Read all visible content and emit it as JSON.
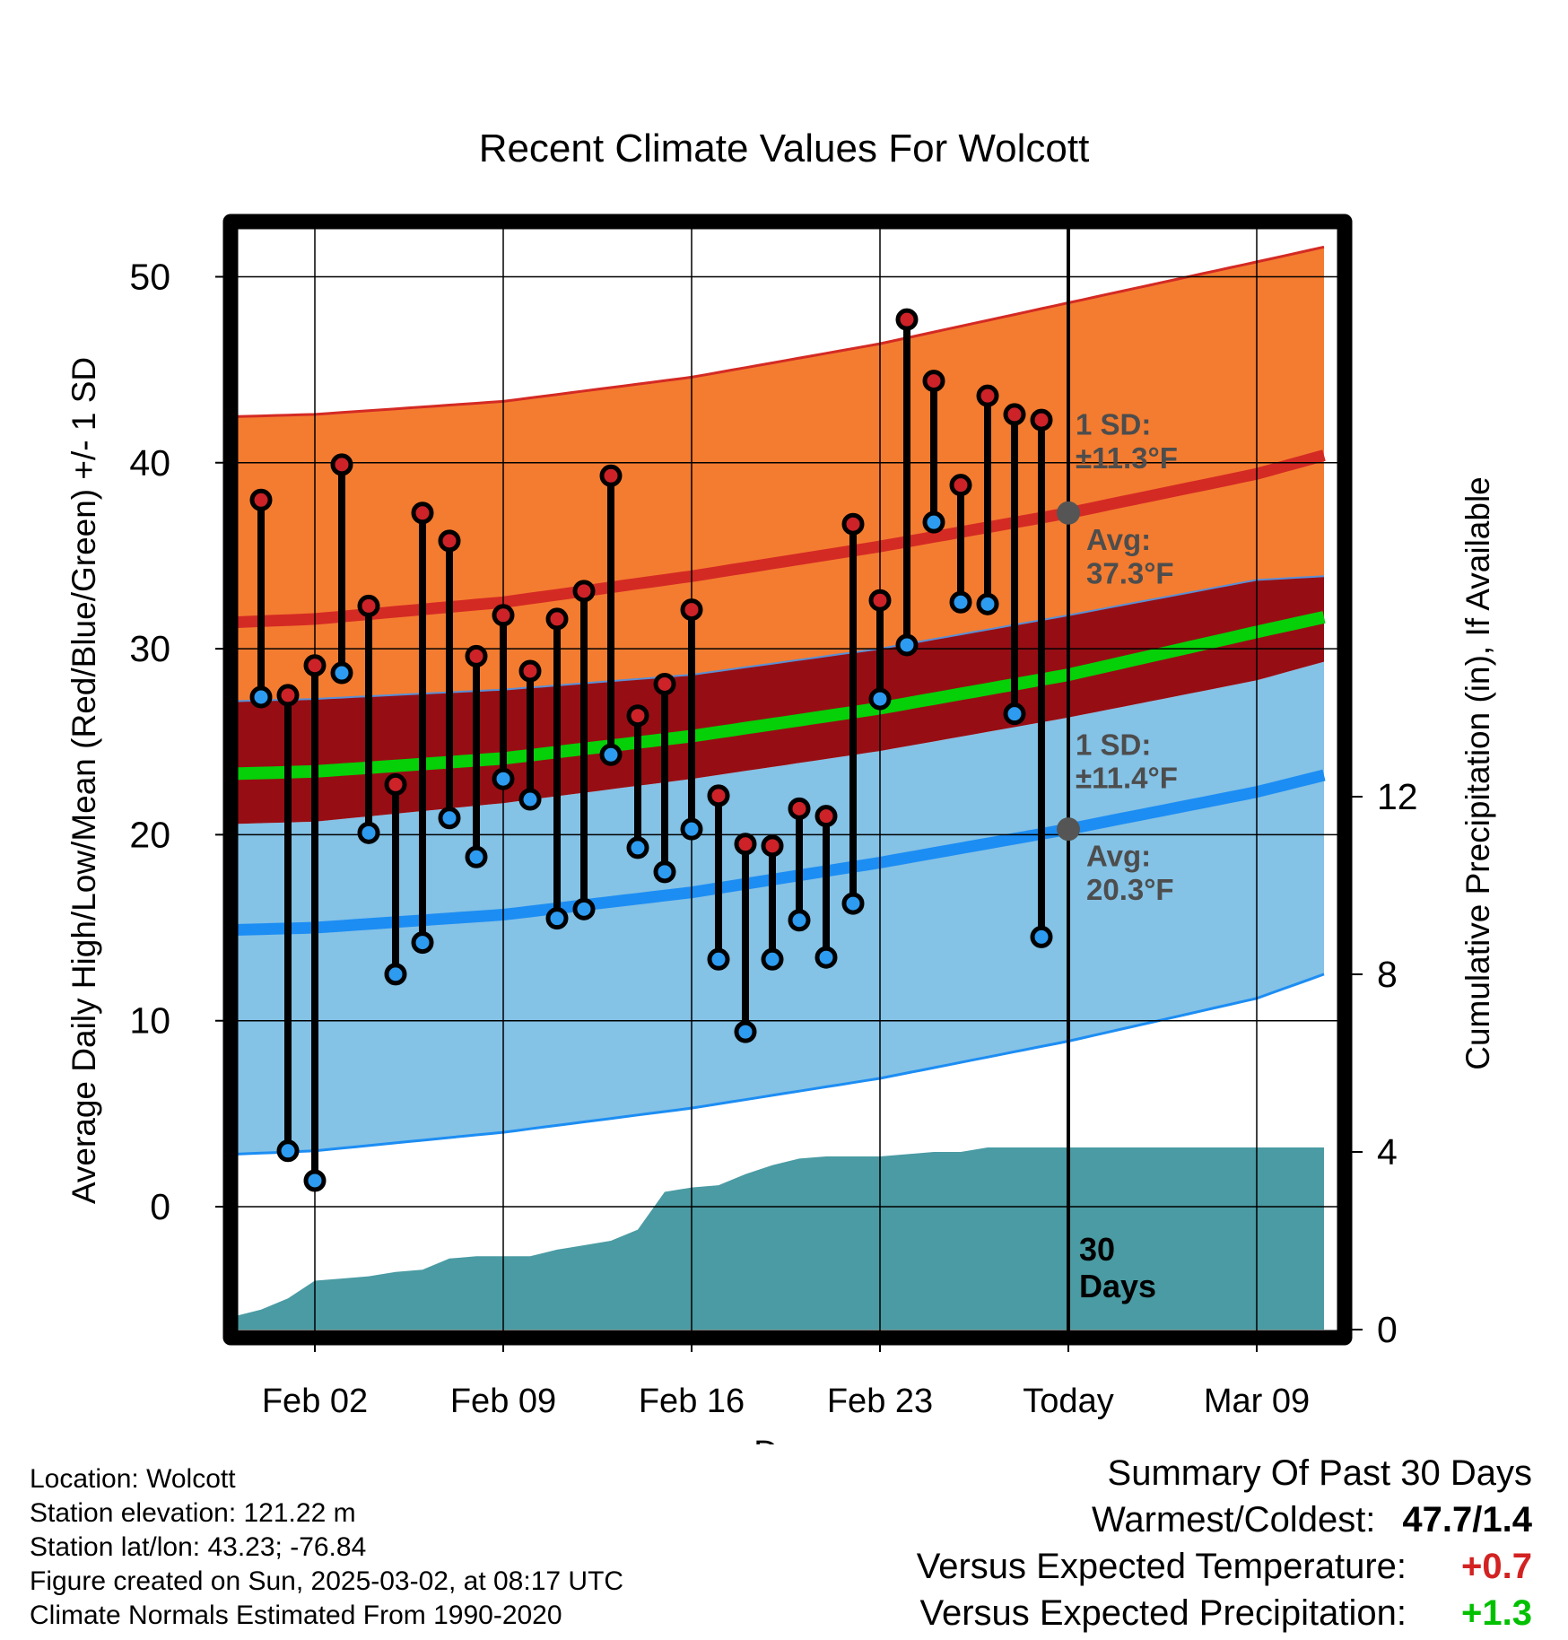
{
  "chart_data": {
    "type": "line",
    "title": "Recent Climate Values For Wolcott",
    "xlabel": "Day",
    "ylabel_left": "Average Daily High/Low/Mean (Red/Blue/Green) +/- 1 SD",
    "ylabel_right": "Cumulative Precipitation (in), If Available",
    "x_range_days": [
      -33.5,
      11.5
    ],
    "ylim_left": [
      -6.5,
      53.5
    ],
    "ylim_right": [
      0,
      20
    ],
    "x_ticks": [
      {
        "day": -28,
        "label": "Feb 02"
      },
      {
        "day": -21,
        "label": "Feb 09"
      },
      {
        "day": -14,
        "label": "Feb 16"
      },
      {
        "day": -7,
        "label": "Feb 23"
      },
      {
        "day": 0,
        "label": "Today"
      },
      {
        "day": 7,
        "label": "Mar 09"
      }
    ],
    "y_ticks_left": [
      0,
      10,
      20,
      30,
      40,
      50
    ],
    "y_ticks_right": [
      0,
      4,
      8,
      12
    ],
    "grid": true,
    "normals_days": [
      -33,
      -28,
      -21,
      -14,
      -7,
      0,
      7,
      9.5
    ],
    "normal_high": [
      31.3,
      31.6,
      32.5,
      33.9,
      35.5,
      37.3,
      39.4,
      40.4
    ],
    "normal_high_upper": [
      42.4,
      42.6,
      43.3,
      44.6,
      46.4,
      48.6,
      50.8,
      51.6
    ],
    "normal_high_lower": [
      27.1,
      27.3,
      27.8,
      28.6,
      30.0,
      31.8,
      33.7,
      33.9
    ],
    "normal_mean": [
      23.2,
      23.4,
      24.1,
      25.3,
      26.8,
      28.6,
      30.9,
      31.7
    ],
    "normal_low": [
      14.8,
      15.0,
      15.7,
      16.9,
      18.5,
      20.3,
      22.3,
      23.2
    ],
    "normal_low_upper": [
      20.5,
      20.7,
      21.7,
      23.0,
      24.5,
      26.3,
      28.3,
      29.3
    ],
    "normal_low_lower": [
      2.7,
      3.0,
      4.0,
      5.3,
      6.9,
      8.9,
      11.2,
      12.5
    ],
    "observed": {
      "days": [
        -30,
        -29,
        -28,
        -27,
        -26,
        -25,
        -24,
        -23,
        -22,
        -21,
        -20,
        -19,
        -18,
        -17,
        -16,
        -15,
        -14,
        -13,
        -12,
        -11,
        -10,
        -9,
        -8,
        -7,
        -6,
        -5,
        -4,
        -3,
        -2,
        -1
      ],
      "highs": [
        38.0,
        27.5,
        29.1,
        39.9,
        32.3,
        22.7,
        37.3,
        35.8,
        29.6,
        31.8,
        28.8,
        31.6,
        33.1,
        39.3,
        26.4,
        28.1,
        32.1,
        22.1,
        19.5,
        19.4,
        21.4,
        21.0,
        36.7,
        32.6,
        47.7,
        44.4,
        38.8,
        43.6,
        42.6,
        42.3
      ],
      "lows": [
        27.4,
        3.0,
        1.4,
        28.7,
        20.1,
        12.5,
        14.2,
        20.9,
        18.8,
        23.0,
        21.9,
        15.5,
        16.0,
        24.3,
        19.3,
        18.0,
        20.3,
        13.3,
        9.4,
        13.3,
        15.4,
        13.4,
        16.3,
        27.3,
        30.2,
        36.8,
        32.5,
        32.4,
        26.5,
        14.5
      ]
    },
    "precip_cumulative": {
      "days": [
        -33,
        -32.3,
        -31,
        -30,
        -29,
        -28,
        -27,
        -26,
        -25,
        -24,
        -23,
        -22,
        -21,
        -20,
        -19,
        -18,
        -17,
        -16,
        -15,
        -14,
        -13,
        -12,
        -11,
        -10,
        -9,
        -8,
        -7,
        -6,
        -5,
        -4,
        -3,
        -2,
        -1,
        9.5
      ],
      "values": [
        0,
        0.25,
        0.3,
        0.45,
        0.7,
        1.1,
        1.15,
        1.2,
        1.3,
        1.35,
        1.6,
        1.65,
        1.65,
        1.65,
        1.8,
        1.9,
        2.0,
        2.25,
        3.1,
        3.2,
        3.25,
        3.5,
        3.7,
        3.85,
        3.9,
        3.9,
        3.9,
        3.95,
        4.0,
        4.0,
        4.1,
        4.1,
        4.1,
        4.1
      ]
    },
    "annotations": {
      "sd_high": "1 SD:\n±11.3°F",
      "avg_high": "Avg:\n37.3°F",
      "sd_low": "1 SD:\n±11.4°F",
      "avg_low": "Avg:\n20.3°F",
      "window": "30\nDays"
    },
    "avg_high_value": 37.3,
    "avg_low_value": 20.3
  },
  "colors": {
    "high_band": "#f47c30",
    "high_line": "#d42a24",
    "overlap_band": "#960e14",
    "mean_line": "#06d008",
    "low_band": "#84c2e6",
    "low_line": "#1c8df3",
    "precip": "#4a9ba3",
    "high_marker": "#cd2228",
    "low_marker": "#2d9bf0",
    "annotation_text": "#4d4d4d",
    "warm_text": "#d22222",
    "green_text": "#00c000"
  },
  "info": {
    "location": "Location: Wolcott",
    "elevation": "Station elevation: 121.22 m",
    "latlon": "Station lat/lon: 43.23; -76.84",
    "created": "Figure created on Sun, 2025-03-02, at 08:17 UTC",
    "normals": "Climate Normals Estimated From 1990-2020"
  },
  "summary": {
    "title": "Summary Of Past 30 Days",
    "warm_cold_label": "Warmest/Coldest:",
    "warm_cold_value": "47.7/1.4",
    "temp_label": "Versus Expected Temperature:",
    "temp_value": "+0.7",
    "precip_label": "Versus Expected Precipitation:",
    "precip_value": "+1.3"
  }
}
